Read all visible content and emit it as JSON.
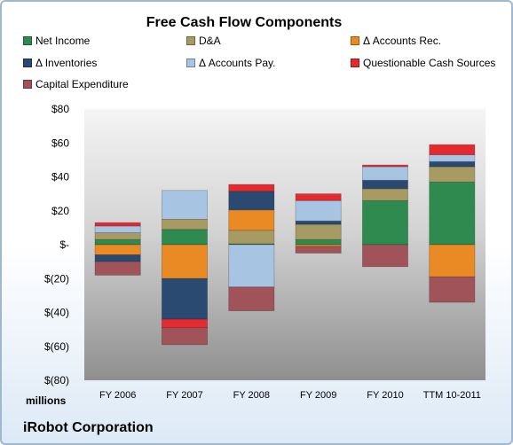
{
  "chart_data": {
    "type": "bar",
    "stacked": true,
    "title": "Free Cash Flow Components",
    "unit_label": "millions",
    "company": "iRobot Corporation",
    "categories": [
      "FY 2006",
      "FY 2007",
      "FY 2008",
      "FY 2009",
      "FY 2010",
      "TTM 10-2011"
    ],
    "ylim": [
      -80,
      80
    ],
    "yticks": [
      80,
      60,
      40,
      20,
      0,
      -20,
      -40,
      -60,
      -80
    ],
    "ytick_labels": [
      "$80",
      "$60",
      "$40",
      "$20",
      "$-",
      "$(20)",
      "$(40)",
      "$(60)",
      "$(80)"
    ],
    "grid": false,
    "legend_position": "top",
    "series": [
      {
        "name": "Net Income",
        "color": "#2e8a4e",
        "values": [
          3,
          9,
          0.5,
          3,
          26,
          37
        ]
      },
      {
        "name": "D&A",
        "color": "#a89a63",
        "values": [
          4,
          6,
          8,
          9,
          7,
          9
        ]
      },
      {
        "name": "Δ Accounts Rec.",
        "color": "#ea8a24",
        "values": [
          -6,
          -20,
          12,
          -1,
          0,
          -19
        ]
      },
      {
        "name": "Δ Inventories",
        "color": "#2b4a72",
        "values": [
          -4,
          -24,
          11,
          2,
          5,
          3
        ]
      },
      {
        "name": "Δ Accounts Pay.",
        "color": "#a8c4e3",
        "values": [
          4,
          17,
          -25,
          12,
          8,
          4
        ]
      },
      {
        "name": "Questionable Cash Sources",
        "color": "#e52a2f",
        "values": [
          2,
          -5,
          4,
          4,
          1,
          6
        ]
      },
      {
        "name": "Capital Expenditure",
        "color": "#a0545a",
        "values": [
          -8,
          -10,
          -14,
          -4,
          -13,
          -15
        ]
      }
    ]
  }
}
